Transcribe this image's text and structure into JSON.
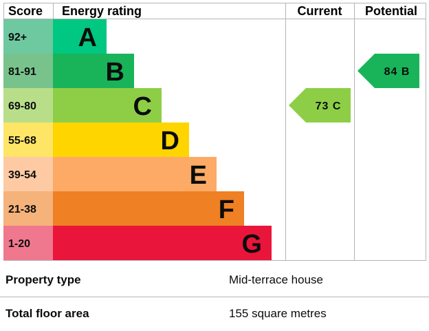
{
  "chart_data": {
    "type": "bar",
    "headers": {
      "score": "Score",
      "rating": "Energy rating",
      "current": "Current",
      "potential": "Potential"
    },
    "bands": [
      {
        "score": "92+",
        "letter": "A",
        "bar_color": "#008054",
        "score_color": "#6ec9a0"
      },
      {
        "score": "81-91",
        "letter": "B",
        "bar_color": "#19b459",
        "score_color": "#78c38c"
      },
      {
        "score": "69-80",
        "letter": "C",
        "bar_color": "#8dce46",
        "score_color": "#b8de8a"
      },
      {
        "score": "55-68",
        "letter": "D",
        "bar_color": "#ffd500",
        "score_color": "#ffe566"
      },
      {
        "score": "39-54",
        "letter": "E",
        "bar_color": "#fcaa65",
        "score_color": "#fdcaa3"
      },
      {
        "score": "21-38",
        "letter": "F",
        "bar_color": "#ef8023",
        "score_color": "#f5b27a"
      },
      {
        "score": "1-20",
        "letter": "G",
        "bar_color": "#e9153b",
        "score_color": "#f0788e"
      }
    ],
    "bar_color_a": "#00c781",
    "current": {
      "value": 73,
      "band": "C",
      "label": "73 C",
      "color": "#8dce46"
    },
    "potential": {
      "value": 84,
      "band": "B",
      "label": "84 B",
      "color": "#19b459"
    }
  },
  "details": {
    "property_type_label": "Property type",
    "property_type_value": "Mid-terrace house",
    "floor_area_label": "Total floor area",
    "floor_area_value": "155 square metres"
  }
}
